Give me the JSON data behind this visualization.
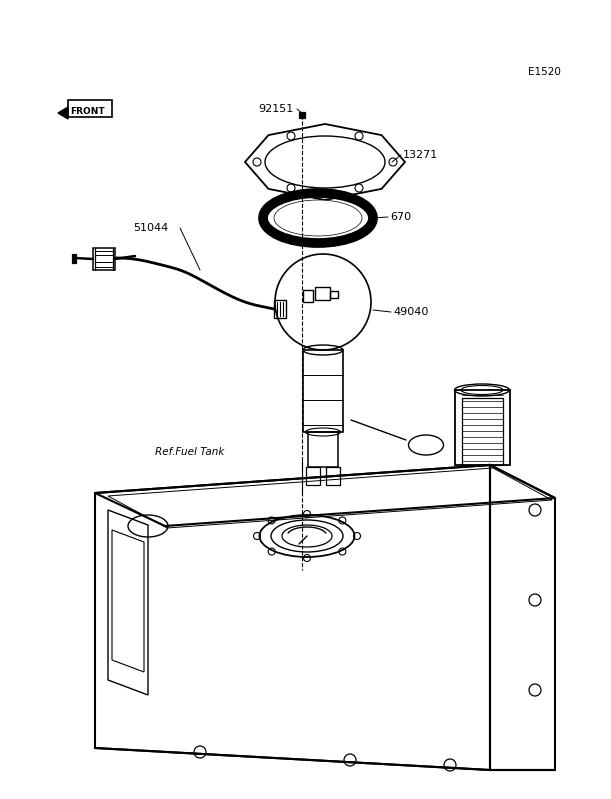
{
  "bg_color": "#ffffff",
  "line_color": "#000000",
  "page_id": "E1520",
  "figsize": [
    6.11,
    7.99
  ],
  "dpi": 100
}
